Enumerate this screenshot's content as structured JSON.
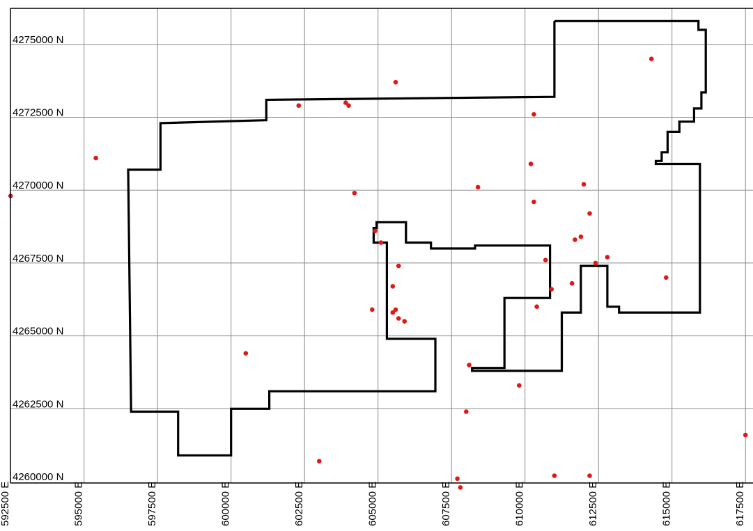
{
  "map": {
    "northing_labels": [
      "4260000 N",
      "4262500 N",
      "4265000 N",
      "4267500 N",
      "4270000 N",
      "4272500 N",
      "4275000 N"
    ],
    "easting_labels": [
      "592500 E",
      "595000 E",
      "597500 E",
      "600000 E",
      "602500 E",
      "605000 E",
      "607500 E",
      "610000 E",
      "612500 E",
      "615000 E",
      "617500 E"
    ],
    "colors": {
      "points": "#e01818",
      "boundary": "#000000",
      "grid": "#8c8c8c",
      "background": "#ffffff"
    },
    "outer_boundary": [
      [
        611000,
        4275800
      ],
      [
        615900,
        4275800
      ],
      [
        615900,
        4275500
      ],
      [
        616150,
        4275500
      ],
      [
        616150,
        4273350
      ],
      [
        616000,
        4273350
      ],
      [
        616000,
        4272800
      ],
      [
        615750,
        4272800
      ],
      [
        615750,
        4272350
      ],
      [
        615250,
        4272350
      ],
      [
        615250,
        4272000
      ],
      [
        614850,
        4272000
      ],
      [
        614850,
        4271300
      ],
      [
        614650,
        4271300
      ],
      [
        614650,
        4271000
      ],
      [
        614450,
        4271000
      ],
      [
        614450,
        4270900
      ],
      [
        615950,
        4270900
      ],
      [
        615950,
        4265800
      ],
      [
        613200,
        4265800
      ],
      [
        613200,
        4266000
      ],
      [
        612800,
        4266000
      ],
      [
        612800,
        4267400
      ],
      [
        611900,
        4267400
      ],
      [
        611900,
        4265800
      ],
      [
        611250,
        4265800
      ],
      [
        611250,
        4263800
      ],
      [
        608200,
        4263800
      ],
      [
        608200,
        4263900
      ],
      [
        609300,
        4263900
      ],
      [
        609300,
        4266300
      ],
      [
        610850,
        4266300
      ],
      [
        610850,
        4268100
      ],
      [
        608300,
        4268100
      ],
      [
        608300,
        4268000
      ],
      [
        606800,
        4268000
      ],
      [
        606800,
        4268200
      ],
      [
        605950,
        4268200
      ],
      [
        605950,
        4268900
      ],
      [
        604950,
        4268900
      ],
      [
        604950,
        4268700
      ],
      [
        604850,
        4268700
      ],
      [
        604850,
        4268200
      ],
      [
        605300,
        4268200
      ],
      [
        605300,
        4264900
      ],
      [
        606950,
        4264900
      ],
      [
        606950,
        4263100
      ],
      [
        601300,
        4263100
      ],
      [
        601300,
        4262500
      ],
      [
        600000,
        4262500
      ],
      [
        600000,
        4260900
      ],
      [
        598200,
        4260900
      ],
      [
        598200,
        4262400
      ],
      [
        596600,
        4262400
      ],
      [
        596500,
        4270700
      ],
      [
        597600,
        4270700
      ],
      [
        597600,
        4272300
      ],
      [
        601200,
        4272400
      ],
      [
        601200,
        4273100
      ],
      [
        611000,
        4273200
      ],
      [
        611000,
        4275800
      ]
    ],
    "points": [
      [
        592500,
        4269800
      ],
      [
        595400,
        4271100
      ],
      [
        600500,
        4264400
      ],
      [
        602300,
        4272900
      ],
      [
        603000,
        4260700
      ],
      [
        603900,
        4273000
      ],
      [
        604000,
        4272900
      ],
      [
        604200,
        4269900
      ],
      [
        604900,
        4268600
      ],
      [
        604800,
        4265900
      ],
      [
        605100,
        4268200
      ],
      [
        605600,
        4273700
      ],
      [
        605500,
        4266700
      ],
      [
        605600,
        4265900
      ],
      [
        605500,
        4265800
      ],
      [
        605700,
        4267400
      ],
      [
        605700,
        4265600
      ],
      [
        605900,
        4265500
      ],
      [
        607800,
        4259800
      ],
      [
        608000,
        4262400
      ],
      [
        608100,
        4264000
      ],
      [
        608400,
        4270100
      ],
      [
        609800,
        4263300
      ],
      [
        610300,
        4272600
      ],
      [
        610200,
        4270900
      ],
      [
        610300,
        4269600
      ],
      [
        610400,
        4266000
      ],
      [
        610700,
        4267600
      ],
      [
        610900,
        4266600
      ],
      [
        611000,
        4260200
      ],
      [
        611600,
        4266800
      ],
      [
        611700,
        4268300
      ],
      [
        611900,
        4268400
      ],
      [
        612000,
        4270200
      ],
      [
        612200,
        4269200
      ],
      [
        612200,
        4260200
      ],
      [
        612400,
        4267500
      ],
      [
        612800,
        4267700
      ],
      [
        614300,
        4274500
      ],
      [
        614800,
        4267000
      ],
      [
        617500,
        4261600
      ],
      [
        607700,
        4260100
      ]
    ]
  }
}
